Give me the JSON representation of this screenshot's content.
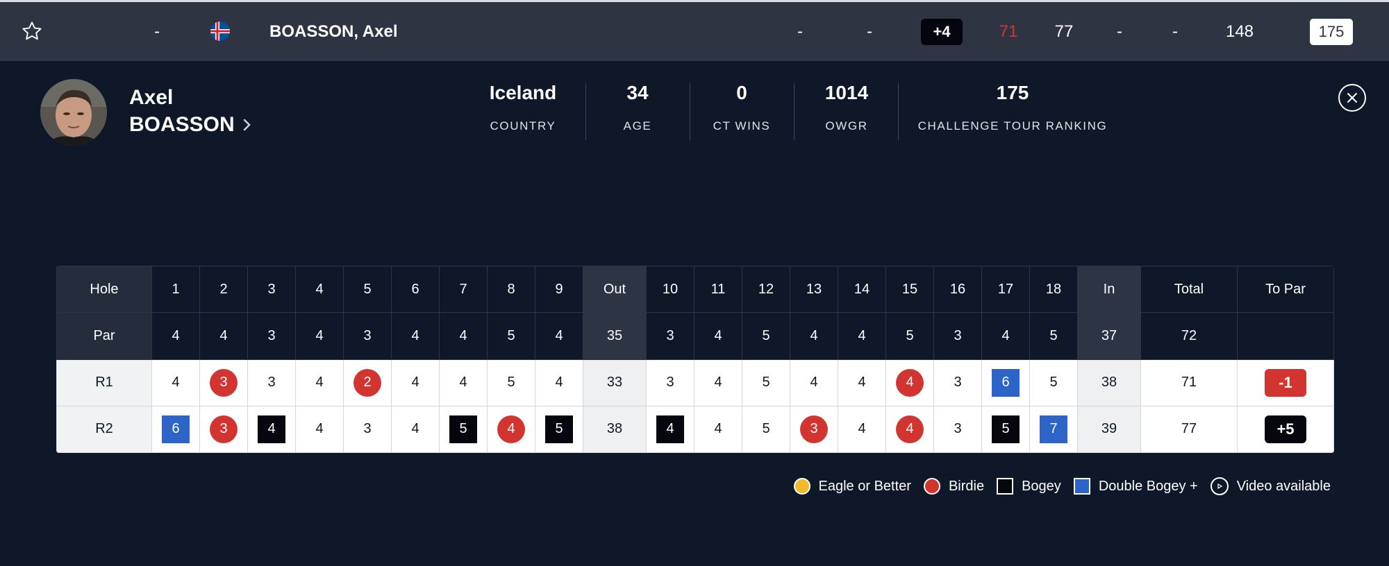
{
  "top_row": {
    "position": "-",
    "player_name": "BOASSON, Axel",
    "col_a": "-",
    "col_b": "-",
    "to_par": "+4",
    "r1": "71",
    "r2": "77",
    "r3": "-",
    "r4": "-",
    "total": "148",
    "ranking": "175"
  },
  "profile": {
    "first_name": "Axel",
    "last_name": "BOASSON",
    "stats": [
      {
        "value": "Iceland",
        "label": "COUNTRY"
      },
      {
        "value": "34",
        "label": "AGE"
      },
      {
        "value": "0",
        "label": "CT WINS"
      },
      {
        "value": "1014",
        "label": "OWGR"
      },
      {
        "value": "175",
        "label": "CHALLENGE TOUR RANKING"
      }
    ]
  },
  "scorecard": {
    "header_label": "Hole",
    "holes": [
      "1",
      "2",
      "3",
      "4",
      "5",
      "6",
      "7",
      "8",
      "9",
      "Out",
      "10",
      "11",
      "12",
      "13",
      "14",
      "15",
      "16",
      "17",
      "18",
      "In",
      "Total",
      "To Par"
    ],
    "par_label": "Par",
    "par": [
      "4",
      "4",
      "3",
      "4",
      "3",
      "4",
      "4",
      "5",
      "4",
      "35",
      "3",
      "4",
      "5",
      "4",
      "4",
      "5",
      "3",
      "4",
      "5",
      "37",
      "72",
      ""
    ],
    "rounds": [
      {
        "label": "R1",
        "scores": [
          "4",
          "3",
          "3",
          "4",
          "2",
          "4",
          "4",
          "5",
          "4",
          "33",
          "3",
          "4",
          "5",
          "4",
          "4",
          "4",
          "3",
          "6",
          "5",
          "38",
          "71",
          "-1"
        ],
        "marks": [
          "",
          "birdie",
          "",
          "",
          "birdie",
          "",
          "",
          "",
          "",
          "",
          "",
          "",
          "",
          "",
          "",
          "birdie",
          "",
          "double",
          "",
          "",
          "",
          "red"
        ]
      },
      {
        "label": "R2",
        "scores": [
          "6",
          "3",
          "4",
          "4",
          "3",
          "4",
          "5",
          "4",
          "5",
          "38",
          "4",
          "4",
          "5",
          "3",
          "4",
          "4",
          "3",
          "5",
          "7",
          "39",
          "77",
          "+5"
        ],
        "marks": [
          "double",
          "birdie",
          "bogey",
          "",
          "",
          "",
          "bogey",
          "birdie",
          "bogey",
          "",
          "bogey",
          "",
          "",
          "birdie",
          "",
          "birdie",
          "",
          "bogey",
          "double",
          "",
          "",
          "dark"
        ]
      }
    ]
  },
  "legend": {
    "eagle": "Eagle or Better",
    "birdie": "Birdie",
    "bogey": "Bogey",
    "double": "Double Bogey +",
    "video": "Video available"
  },
  "colors": {
    "background": "#0f1828",
    "top_row": "#2f3443",
    "birdie": "#d2352f",
    "bogey": "#06060f",
    "double_bogey": "#2d64c8",
    "eagle": "#f3b92c"
  }
}
